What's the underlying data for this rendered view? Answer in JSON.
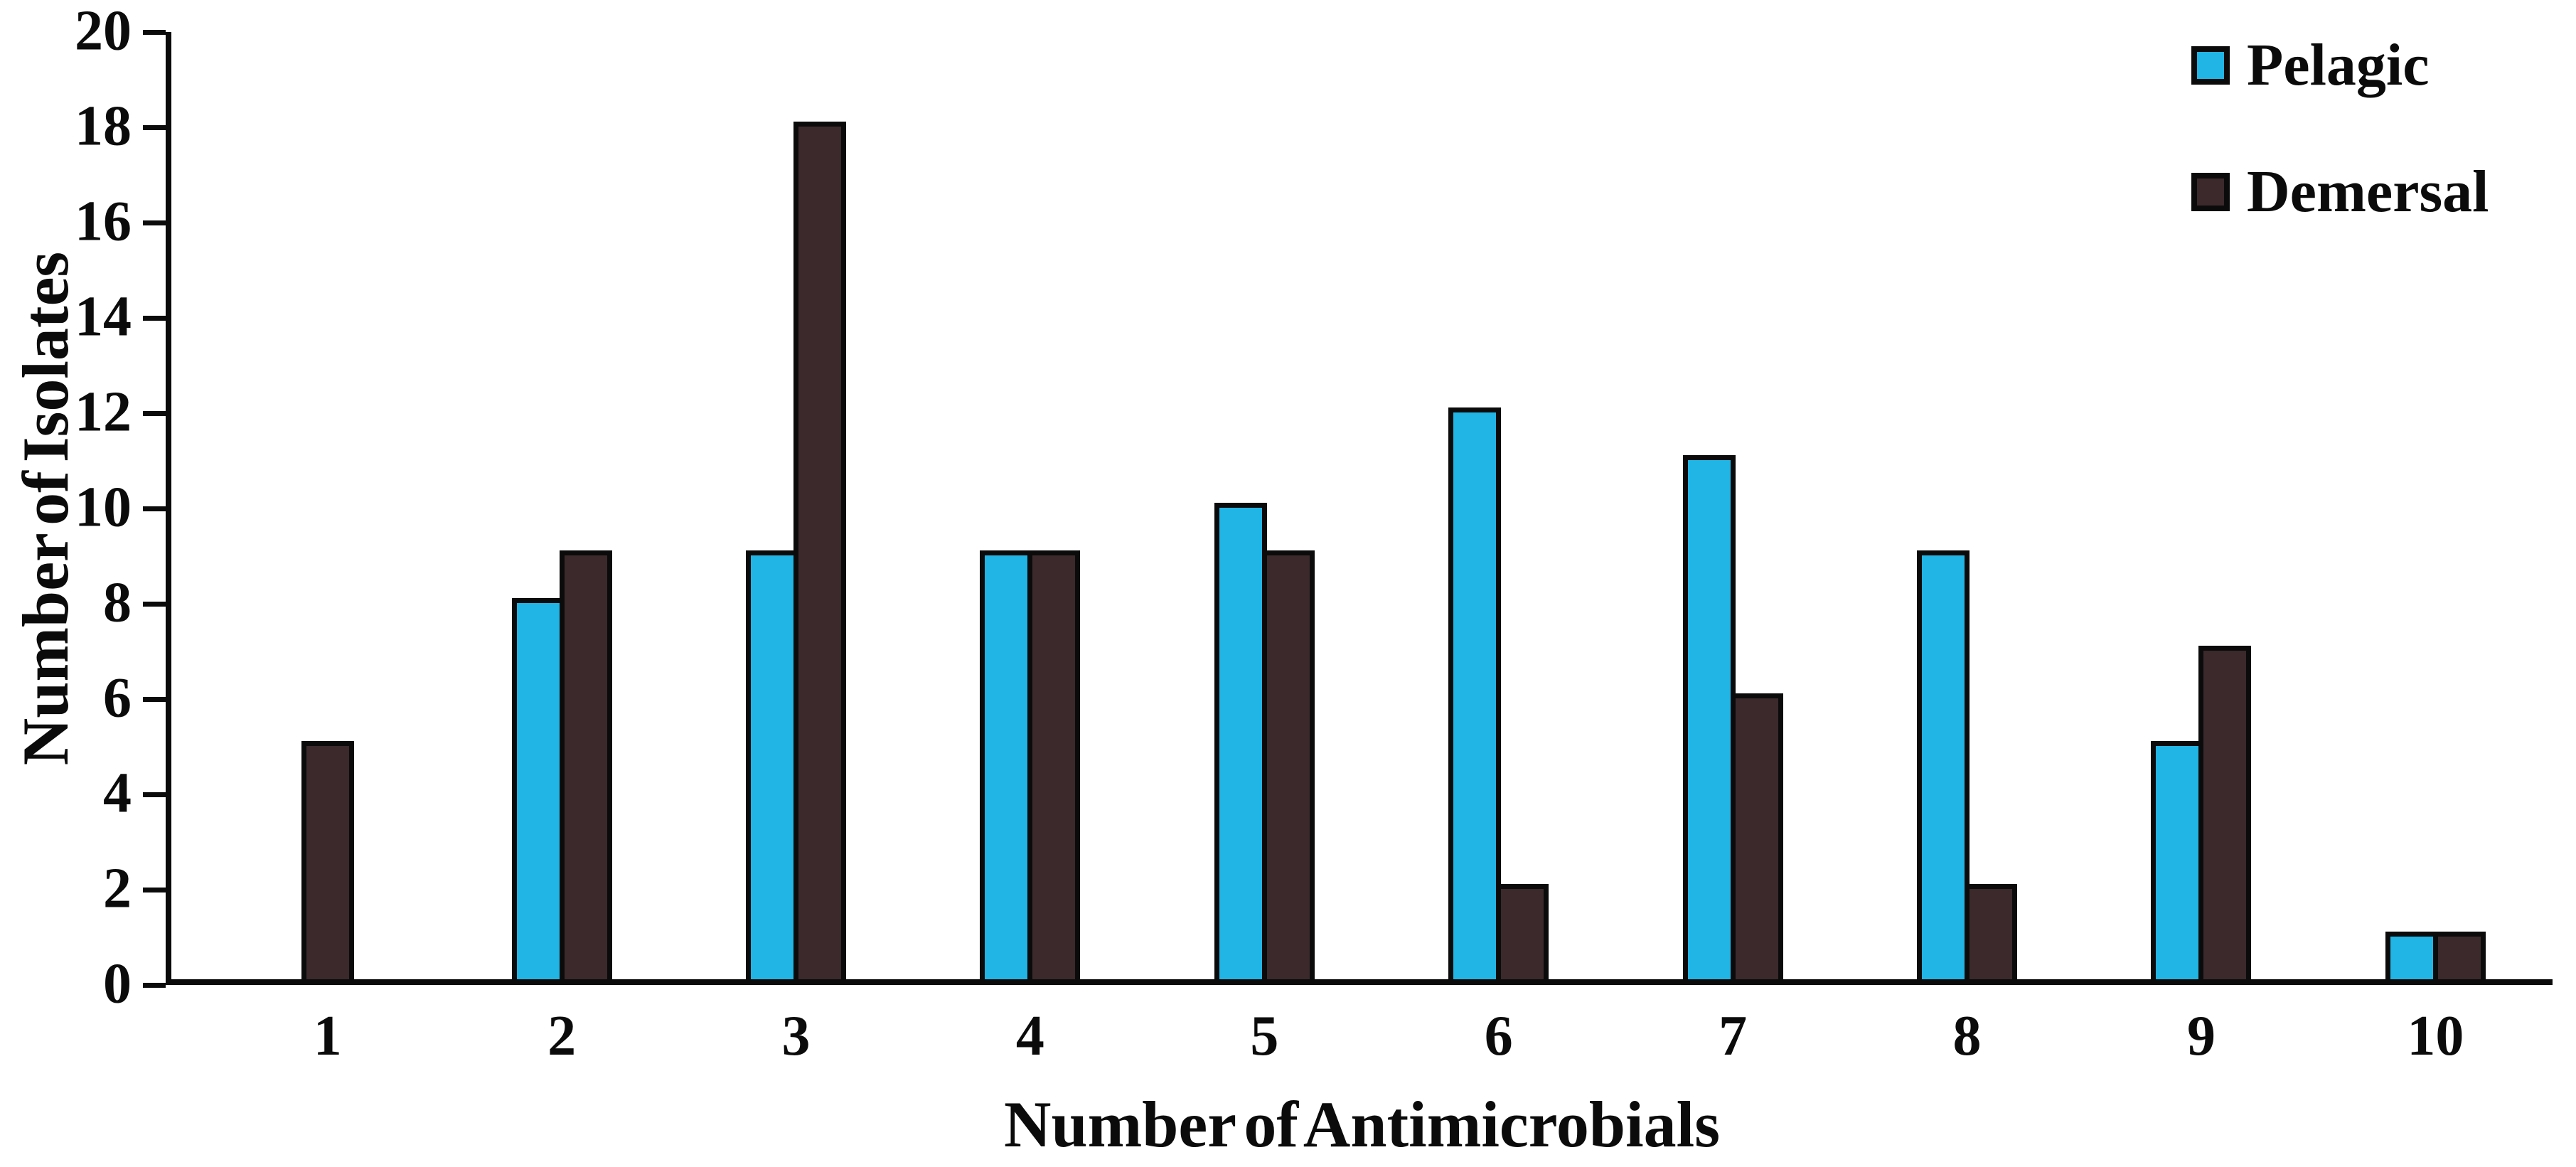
{
  "chart_data": {
    "type": "bar",
    "title": "",
    "categories": [
      "1",
      "2",
      "3",
      "4",
      "5",
      "6",
      "7",
      "8",
      "9",
      "10"
    ],
    "series": [
      {
        "name": "Pelagic",
        "color": "#20B5E5",
        "values": [
          0,
          8,
          9,
          9,
          10,
          12,
          11,
          9,
          5,
          1
        ]
      },
      {
        "name": "Demersal",
        "color": "#3B292B",
        "values": [
          5,
          9,
          18,
          9,
          9,
          2,
          6,
          2,
          7,
          1
        ]
      }
    ],
    "xlabel": "Number of Antimicrobials",
    "ylabel": "Number of Isolates",
    "ylim": [
      0,
      20
    ],
    "ytick_step": 2,
    "yticks": [
      0,
      2,
      4,
      6,
      8,
      10,
      12,
      14,
      16,
      18,
      20
    ],
    "grid": false,
    "legend_position": "top-right",
    "bar_outline_color": "#0b0b0b",
    "axis_color": "#0b0b0b"
  }
}
